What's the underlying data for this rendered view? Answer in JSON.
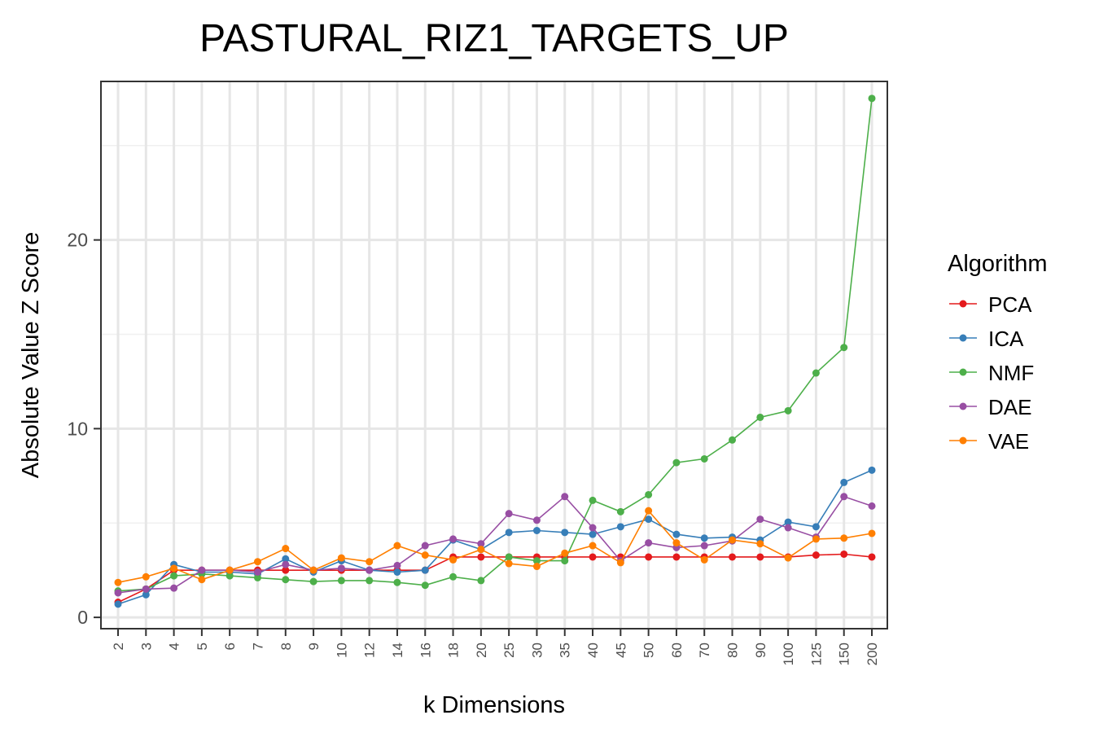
{
  "chart_data": {
    "type": "line",
    "title": "PASTURAL_RIZ1_TARGETS_UP",
    "xlabel": "k Dimensions",
    "ylabel": "Absolute Value Z Score",
    "categories": [
      "2",
      "3",
      "4",
      "5",
      "6",
      "7",
      "8",
      "9",
      "10",
      "12",
      "14",
      "16",
      "18",
      "20",
      "25",
      "30",
      "35",
      "40",
      "45",
      "50",
      "60",
      "70",
      "80",
      "90",
      "100",
      "125",
      "150",
      "200"
    ],
    "ylim": [
      -0.6,
      28.4
    ],
    "yticks": [
      0,
      10,
      20
    ],
    "grid": true,
    "legend": {
      "title": "Algorithm",
      "position": "right"
    },
    "series": [
      {
        "name": "PCA",
        "color": "#e41a1c",
        "values": [
          0.8,
          1.5,
          2.5,
          2.5,
          2.5,
          2.5,
          2.5,
          2.5,
          2.5,
          2.5,
          2.5,
          2.5,
          3.2,
          3.2,
          3.2,
          3.2,
          3.2,
          3.2,
          3.2,
          3.2,
          3.2,
          3.2,
          3.2,
          3.2,
          3.2,
          3.3,
          3.35,
          3.2
        ]
      },
      {
        "name": "ICA",
        "color": "#377eb8",
        "values": [
          0.7,
          1.2,
          2.8,
          2.4,
          2.4,
          2.3,
          3.1,
          2.4,
          3.0,
          2.5,
          2.4,
          2.5,
          4.1,
          3.6,
          4.5,
          4.6,
          4.5,
          4.4,
          4.8,
          5.2,
          4.4,
          4.2,
          4.25,
          4.1,
          5.05,
          4.8,
          7.15,
          7.8
        ]
      },
      {
        "name": "NMF",
        "color": "#4daf4a",
        "values": [
          1.4,
          1.5,
          2.2,
          2.3,
          2.2,
          2.1,
          2.0,
          1.9,
          1.95,
          1.95,
          1.85,
          1.7,
          2.15,
          1.95,
          3.2,
          3.0,
          3.0,
          6.2,
          5.6,
          6.5,
          8.2,
          8.4,
          9.4,
          10.6,
          10.95,
          12.95,
          14.3,
          27.5
        ]
      },
      {
        "name": "DAE",
        "color": "#984ea3",
        "values": [
          1.3,
          1.5,
          1.55,
          2.5,
          2.5,
          2.4,
          2.8,
          2.5,
          2.6,
          2.5,
          2.75,
          3.8,
          4.15,
          3.9,
          5.5,
          5.15,
          6.4,
          4.75,
          3.0,
          3.95,
          3.7,
          3.8,
          4.05,
          5.2,
          4.75,
          4.25,
          6.4,
          5.9
        ]
      },
      {
        "name": "VAE",
        "color": "#ff7f00",
        "values": [
          1.85,
          2.15,
          2.6,
          2.0,
          2.5,
          2.95,
          3.65,
          2.5,
          3.15,
          2.95,
          3.8,
          3.3,
          3.05,
          3.6,
          2.85,
          2.7,
          3.4,
          3.8,
          2.9,
          5.65,
          3.95,
          3.05,
          4.1,
          3.9,
          3.15,
          4.15,
          4.2,
          4.45
        ]
      }
    ]
  }
}
